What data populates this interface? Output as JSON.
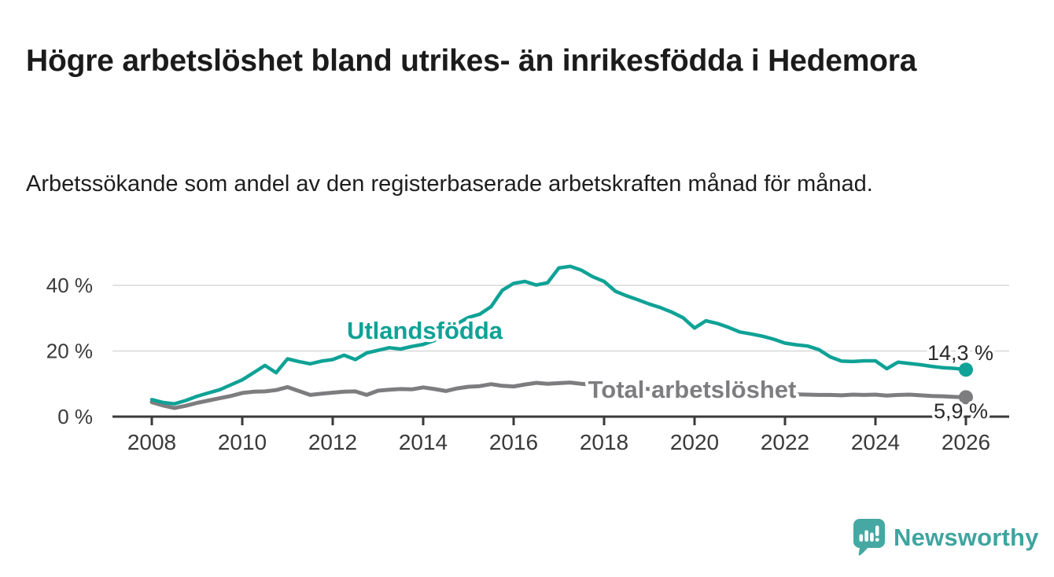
{
  "header": {
    "title": "Högre arbetslöshet bland utrikes- än inrikesfödda i Hedemora",
    "subtitle": "Arbetssökande som andel av den registerbaserade arbetskraften månad för månad."
  },
  "chart_data": {
    "type": "line",
    "title": "",
    "xlabel": "",
    "ylabel": "",
    "x_unit": "year (monthly series, estimated quarterly)",
    "x_start": 2008,
    "x_step": 0.25,
    "xlim": [
      2007.1,
      2026.95
    ],
    "ylim": [
      0,
      51
    ],
    "grid": "horizontal",
    "y_ticks": [
      {
        "value": 0,
        "label": "0 %"
      },
      {
        "value": 20,
        "label": "20 %"
      },
      {
        "value": 40,
        "label": "40 %"
      }
    ],
    "x_ticks": [
      {
        "value": 2008,
        "label": "2008"
      },
      {
        "value": 2010,
        "label": "2010"
      },
      {
        "value": 2012,
        "label": "2012"
      },
      {
        "value": 2014,
        "label": "2014"
      },
      {
        "value": 2016,
        "label": "2016"
      },
      {
        "value": 2018,
        "label": "2018"
      },
      {
        "value": 2020,
        "label": "2020"
      },
      {
        "value": 2022,
        "label": "2022"
      },
      {
        "value": 2024,
        "label": "2024"
      },
      {
        "value": 2026,
        "label": "2026"
      }
    ],
    "series": [
      {
        "name": "Total arbetslöshet",
        "color": "#7d7d80",
        "end_value": 5.9,
        "end_label": "5,9 %",
        "values": [
          4.4,
          3.4,
          2.6,
          3.3,
          4.2,
          4.9,
          5.6,
          6.3,
          7.2,
          7.6,
          7.7,
          8.1,
          9.0,
          7.8,
          6.6,
          7.0,
          7.3,
          7.6,
          7.7,
          6.6,
          7.9,
          8.2,
          8.4,
          8.3,
          8.9,
          8.4,
          7.8,
          8.6,
          9.1,
          9.3,
          9.9,
          9.4,
          9.2,
          9.8,
          10.3,
          10.0,
          10.2,
          10.4,
          10.0,
          9.7,
          9.3,
          9.0,
          8.8,
          8.6,
          8.4,
          8.2,
          8.1,
          8.0,
          8.3,
          8.9,
          8.7,
          8.4,
          8.0,
          7.7,
          7.4,
          7.2,
          7.0,
          6.8,
          6.7,
          6.6,
          6.6,
          6.5,
          6.7,
          6.6,
          6.7,
          6.4,
          6.6,
          6.7,
          6.5,
          6.3,
          6.2,
          6.0,
          5.9
        ]
      },
      {
        "name": "Utlandsfödda",
        "color": "#0fa296",
        "end_value": 14.3,
        "end_label": "14,3 %",
        "values": [
          5.2,
          4.3,
          3.9,
          4.9,
          6.2,
          7.2,
          8.2,
          9.7,
          11.2,
          13.4,
          15.6,
          13.4,
          17.6,
          16.8,
          16.1,
          16.9,
          17.4,
          18.7,
          17.4,
          19.4,
          20.2,
          21.0,
          20.6,
          21.4,
          22.0,
          23.2,
          25.5,
          28.3,
          30.2,
          31.2,
          33.5,
          38.5,
          40.6,
          41.2,
          40.1,
          40.8,
          45.3,
          45.8,
          44.6,
          42.6,
          41.2,
          38.2,
          36.8,
          35.6,
          34.3,
          33.2,
          31.8,
          30.1,
          27.0,
          29.2,
          28.4,
          27.2,
          25.8,
          25.2,
          24.5,
          23.6,
          22.4,
          21.9,
          21.5,
          20.4,
          18.2,
          16.9,
          16.8,
          17.0,
          17.0,
          14.6,
          16.6,
          16.2,
          15.8,
          15.3,
          14.9,
          14.7,
          14.3
        ]
      }
    ],
    "colors": {
      "axis": "#3a3a3a",
      "gridline": "#d8d8d8",
      "tick_label": "#3a3a3a",
      "end_label_text": "#2b2b2b"
    },
    "legend_position": "inline-labels-on-lines"
  },
  "footer": {
    "brand": "Newsworthy",
    "brand_color": "#3fa49e",
    "icon": "bar-chart-speech-bubble-icon",
    "icon_color": "#46a8a2"
  }
}
